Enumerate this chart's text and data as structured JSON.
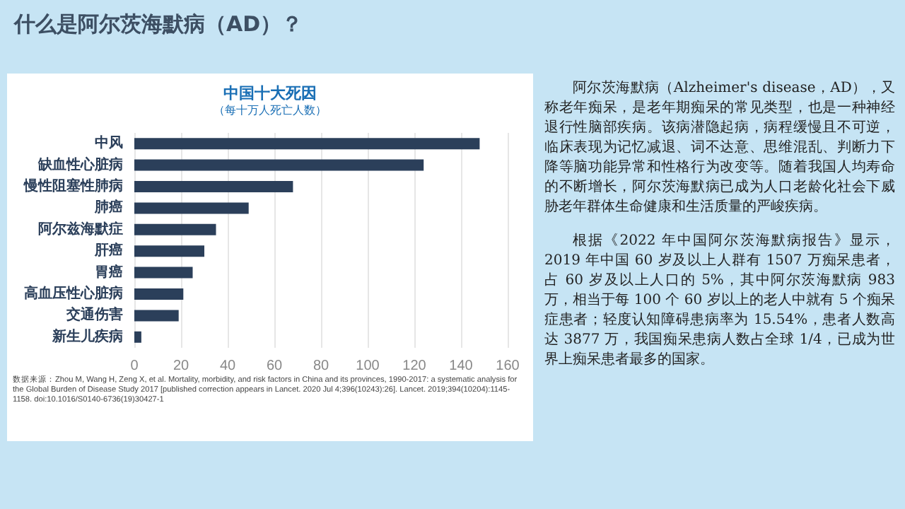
{
  "chart_data": {
    "type": "bar",
    "orientation": "horizontal",
    "title": "中国十大死因",
    "subtitle": "（每十万人死亡人数）",
    "categories": [
      "中风",
      "缺血性心脏病",
      "慢性阻塞性肺病",
      "肺癌",
      "阿尔兹海默症",
      "肝癌",
      "胃癌",
      "高血压性心脏病",
      "交通伤害",
      "新生儿疾病"
    ],
    "values": [
      148,
      124,
      68,
      49,
      35,
      30,
      25,
      21,
      19,
      3
    ],
    "color": "#2b3f5a",
    "xlim": [
      0,
      160
    ],
    "xticks": [
      0,
      20,
      40,
      60,
      80,
      100,
      120,
      140,
      160
    ],
    "grid": "x",
    "annotations": [
      "什么是阿尔茨海默病（AD）？",
      "数据来源：Zhou M, Wang H, Zeng X, et al. Mortality, morbidity, and risk factors in China and its provinces, 1990-2017: a systematic analysis for the Global Burden of Disease Study 2017 [published correction appears in Lancet. 2020 Jul 4;396(10243):26]. Lancet. 2019;394(10204):1145-1158. doi:10.1016/S0140-6736(19)30427-1",
      "阿尔茨海默病（Alzheimer's disease，AD），又称老年痴呆，是老年期痴呆的常见类型，也是一种神经退行性脑部疾病。该病潜隐起病，病程缓慢且不可逆，临床表现为记忆减退、词不达意、思维混乱、判断力下降等脑功能异常和性格行为改变等。随着我国人均寿命的不断增长，阿尔茨海默病已成为人口老龄化社会下威胁老年群体生命健康和生活质量的严峻疾病。",
      "根据《2022 年中国阿尔茨海默病报告》显示，2019 年中国 60 岁及以上人群有 1507 万痴呆患者，占 60 岁及以上人口的 5%，其中阿尔茨海默病 983 万，相当于每 100 个 60 岁以上的老人中就有 5 个痴呆症患者；轻度认知障碍患病率为 15.54%，患者人数高达 3877 万，我国痴呆患病人数占全球 1/4，已成为世界上痴呆患者最多的国家。"
    ]
  }
}
